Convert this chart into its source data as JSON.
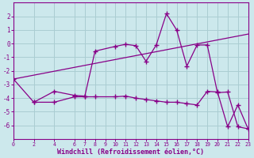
{
  "background_color": "#cce8ec",
  "grid_color": "#aacdd2",
  "line_color": "#880088",
  "xlabel": "Windchill (Refroidissement éolien,°C)",
  "xlim": [
    0,
    23
  ],
  "ylim": [
    -7,
    3
  ],
  "yticks": [
    2,
    1,
    0,
    -1,
    -2,
    -3,
    -4,
    -5,
    -6
  ],
  "xticks": [
    0,
    2,
    4,
    6,
    7,
    8,
    9,
    10,
    11,
    12,
    13,
    14,
    15,
    16,
    17,
    18,
    19,
    20,
    21,
    22,
    23
  ],
  "line1_x": [
    0,
    23
  ],
  "line1_y": [
    -2.6,
    0.7
  ],
  "line2_x": [
    2,
    4,
    6,
    7,
    8,
    10,
    11,
    12,
    13,
    14,
    15,
    16,
    17,
    18,
    19,
    20,
    21,
    22,
    23
  ],
  "line2_y": [
    -4.3,
    -3.5,
    -3.8,
    -3.85,
    -0.55,
    -0.2,
    -0.05,
    -0.15,
    -1.3,
    -0.1,
    2.2,
    1.0,
    -1.65,
    -0.1,
    -0.1,
    -3.6,
    -3.55,
    -6.1,
    -6.25
  ],
  "line3_x": [
    0,
    2,
    4,
    6,
    7,
    8,
    10,
    11,
    12,
    13,
    14,
    15,
    16,
    17,
    18,
    19,
    20,
    21,
    22,
    23
  ],
  "line3_y": [
    -2.6,
    -4.3,
    -4.3,
    -3.9,
    -3.9,
    -3.9,
    -3.9,
    -3.85,
    -4.0,
    -4.1,
    -4.2,
    -4.3,
    -4.3,
    -4.4,
    -4.5,
    -3.5,
    -3.55,
    -6.1,
    -4.5,
    -6.25
  ]
}
